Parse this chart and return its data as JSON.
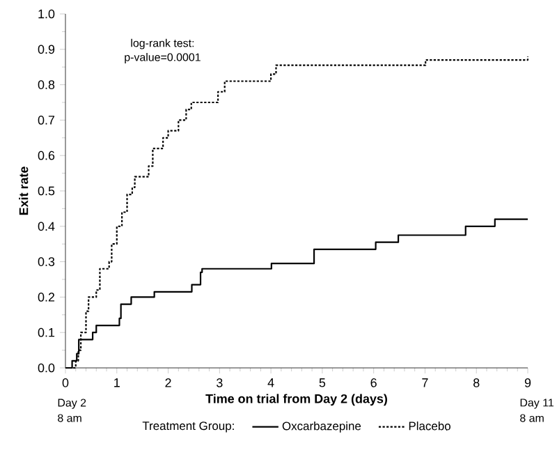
{
  "chart_data": {
    "type": "step",
    "xlabel": "Time on trial from Day 2 (days)",
    "ylabel": "Exit rate",
    "legend_title": "Treatment Group:",
    "annotations": [
      "log-rank test:",
      "p-value=0.0001",
      "Day 2",
      "8 am",
      "Day 11",
      "8 am"
    ],
    "xlim": [
      0,
      9
    ],
    "xticks": [
      0,
      1,
      2,
      3,
      4,
      5,
      6,
      7,
      8,
      9
    ],
    "ylim": [
      0,
      1
    ],
    "yticks": [
      {
        "value": 0,
        "label": "0.0"
      },
      {
        "value": 0.1,
        "label": "0.1"
      },
      {
        "value": 0.2,
        "label": "0.2"
      },
      {
        "value": 0.3,
        "label": "0.3"
      },
      {
        "value": 0.4,
        "label": "0.4"
      },
      {
        "value": 0.5,
        "label": "0.5"
      },
      {
        "value": 0.6,
        "label": "0.6"
      },
      {
        "value": 0.7,
        "label": "0.7"
      },
      {
        "value": 0.8,
        "label": "0.8"
      },
      {
        "value": 0.9,
        "label": "0.9"
      },
      {
        "value": 1,
        "label": "1.0"
      }
    ],
    "grid": false,
    "legend": "bottom",
    "marker": "none",
    "series": [
      {
        "name": "Oxcarbazepine",
        "color": "#000000",
        "line_style": "solid",
        "x": [
          0,
          0.13,
          0.22,
          0.26,
          0.53,
          0.6,
          1.05,
          1.08,
          1.28,
          1.73,
          2.46,
          2.63,
          2.66,
          4.01,
          4.84,
          6.04,
          6.48,
          7.79,
          8.36,
          9.0
        ],
        "values": [
          0,
          0.02,
          0.04,
          0.08,
          0.1,
          0.12,
          0.14,
          0.18,
          0.2,
          0.215,
          0.235,
          0.27,
          0.28,
          0.295,
          0.335,
          0.355,
          0.375,
          0.4,
          0.42,
          0.42
        ]
      },
      {
        "name": "Placebo",
        "color": "#000000",
        "line_style": "dotted",
        "x": [
          0,
          0.2,
          0.25,
          0.3,
          0.4,
          0.45,
          0.6,
          0.67,
          0.85,
          0.9,
          1.0,
          1.1,
          1.2,
          1.3,
          1.35,
          1.62,
          1.7,
          1.9,
          2.0,
          2.2,
          2.35,
          2.45,
          2.97,
          3.1,
          4.0,
          4.1,
          7.01,
          9.0
        ],
        "values": [
          0,
          0.02,
          0.05,
          0.1,
          0.16,
          0.2,
          0.22,
          0.28,
          0.3,
          0.35,
          0.4,
          0.44,
          0.49,
          0.51,
          0.54,
          0.57,
          0.62,
          0.65,
          0.67,
          0.7,
          0.73,
          0.75,
          0.78,
          0.81,
          0.83,
          0.855,
          0.87,
          0.88
        ]
      }
    ]
  }
}
